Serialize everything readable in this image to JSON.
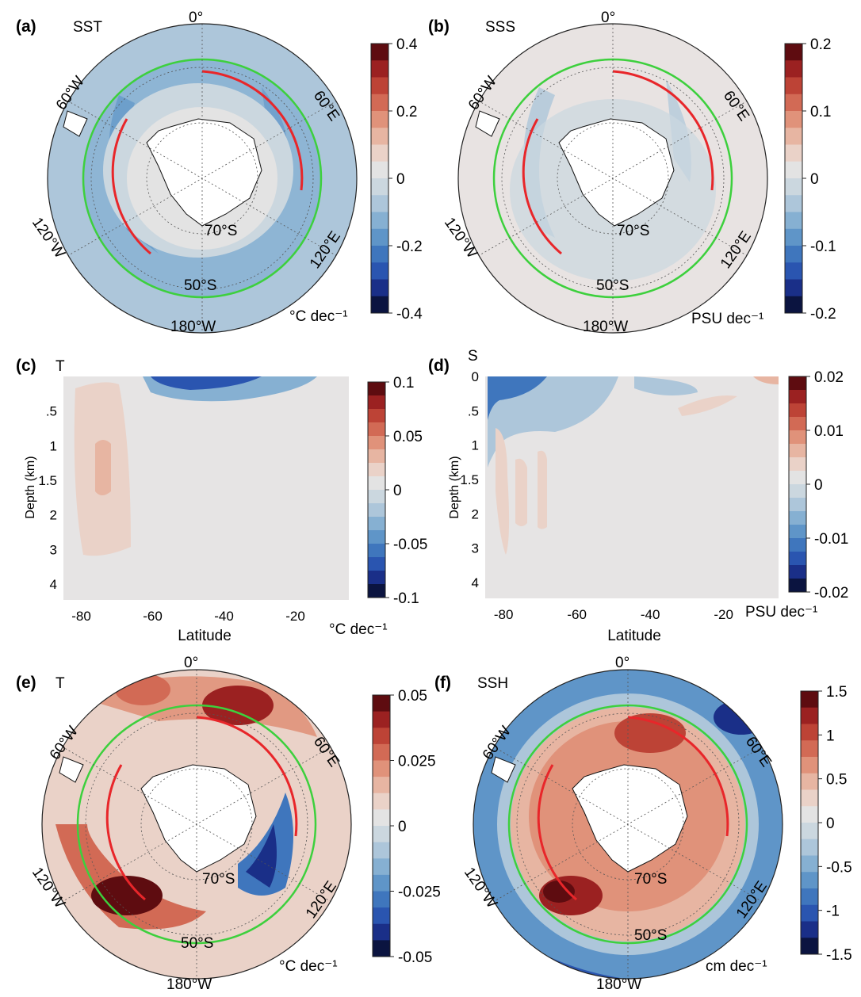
{
  "colors": {
    "ramp": [
      "#0b1440",
      "#1a2f88",
      "#2a55b0",
      "#3f76bd",
      "#5f95c8",
      "#86b0d2",
      "#adc6da",
      "#cbd7df",
      "#e3e3e3",
      "#ead2c8",
      "#e7b5a2",
      "#e0927a",
      "#d26a55",
      "#bd4336",
      "#9b2121",
      "#5e0c10"
    ],
    "antarctica": "#ffffff",
    "contour_red": "#e8262a",
    "contour_green": "#3dd03d"
  },
  "panels": [
    {
      "tag": "(a)",
      "var": "SST",
      "ticks": [
        "0.4",
        "0.2",
        "0",
        "-0.2",
        "-0.4"
      ],
      "unit": "°C dec⁻¹"
    },
    {
      "tag": "(b)",
      "var": "SSS",
      "ticks": [
        "0.2",
        "0.1",
        "0",
        "-0.1",
        "-0.2"
      ],
      "unit": "PSU dec⁻¹"
    },
    {
      "tag": "(e)",
      "var": "T",
      "ticks": [
        "0.05",
        "0.025",
        "0",
        "-0.025",
        "-0.05"
      ],
      "unit": "°C dec⁻¹"
    },
    {
      "tag": "(f)",
      "var": "SSH",
      "ticks": [
        "1.5",
        "1",
        "0.5",
        "0",
        "-0.5",
        "-1",
        "-1.5"
      ],
      "unit": "cm dec⁻¹"
    }
  ],
  "map_labels": {
    "lon_0": "0°",
    "lon_60e": "60°E",
    "lon_120e": "120°E",
    "lon_180": "180°W",
    "lon_120w": "120°W",
    "lon_60w": "60°W",
    "lat_70": "70°S",
    "lat_50": "50°S"
  },
  "chart_data": [
    {
      "type": "heatmap",
      "panel": "(c)",
      "title": "T",
      "xlabel": "Latitude",
      "ylabel": "Depth (km)",
      "x_ticks": [
        "-80",
        "-60",
        "-40",
        "-20"
      ],
      "y_ticks": [
        ".5",
        "1",
        "1.5",
        "2",
        "3",
        "4"
      ],
      "colorbar_ticks": [
        "0.1",
        "0.05",
        "0",
        "-0.05",
        "-0.1"
      ],
      "colorbar_range": [
        -0.1,
        0.1
      ],
      "units": "°C dec⁻¹"
    },
    {
      "type": "heatmap",
      "panel": "(d)",
      "title": "S",
      "xlabel": "Latitude",
      "ylabel": "Depth (km)",
      "x_ticks": [
        "-80",
        "-60",
        "-40",
        "-20"
      ],
      "y_ticks": [
        "0",
        ".5",
        "1",
        "1.5",
        "2",
        "3",
        "4"
      ],
      "colorbar_ticks": [
        "0.02",
        "0.01",
        "0",
        "-0.01",
        "-0.02"
      ],
      "colorbar_range": [
        -0.02,
        0.02
      ],
      "units": "PSU dec⁻¹"
    }
  ]
}
